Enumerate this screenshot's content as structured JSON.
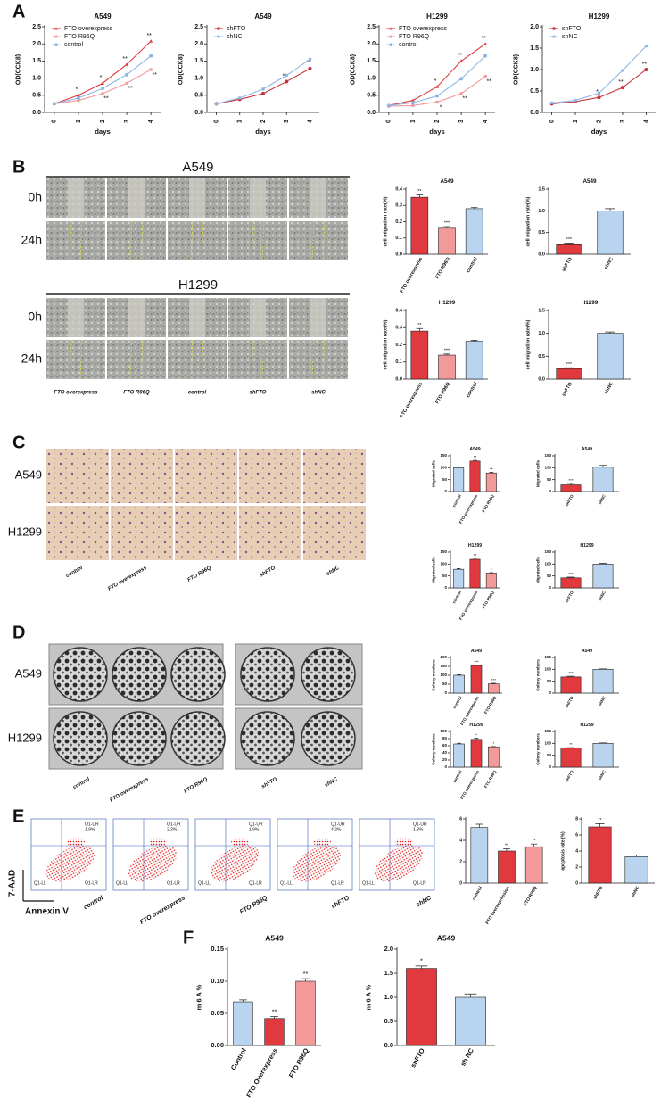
{
  "figure": {
    "panel_labels": [
      "A",
      "B",
      "C",
      "D",
      "E",
      "F"
    ],
    "B": {
      "cell_lines": [
        "A549",
        "H1299"
      ],
      "times": [
        "0h",
        "24h"
      ],
      "columns": [
        "FTO  overexpress",
        "FTO  R96Q",
        "control",
        "shFTO",
        "shNC"
      ]
    },
    "C": {
      "rows": [
        "A549",
        "H1299"
      ],
      "columns": [
        "control",
        "FTO  overexpress",
        "FTO  R96Q",
        "shFTO",
        "shNC"
      ]
    },
    "D": {
      "rows": [
        "A549",
        "H1299"
      ],
      "columns": [
        "control",
        "FTO  overexpress",
        "FTO  R96Q",
        "shFTO",
        "shNC"
      ]
    },
    "E": {
      "columns": [
        "control",
        "FTO  overexpress",
        "FTO  R96Q",
        "shFTO",
        "shNC"
      ],
      "quadrants": [
        "Q1-UR",
        "Q1-LL",
        "Q1-LR"
      ],
      "ur_percents": [
        "1.9%",
        "2.2%",
        "1.9%",
        "4.2%",
        "1.8%"
      ],
      "y_label": "7-AAD",
      "x_label": "Annexin V"
    }
  },
  "chart_data": [
    {
      "type": "line",
      "title": "A549",
      "xlabel": "days",
      "ylabel": "OD(CCK8)",
      "x": [
        0,
        1,
        2,
        3,
        4
      ],
      "xlim": [
        -0.4,
        4.4
      ],
      "xticks": [
        0,
        1,
        2,
        3,
        4
      ],
      "ylim": [
        0,
        2.5
      ],
      "yticks": [
        {
          "value": 0,
          "label": "0.0"
        },
        0.5,
        {
          "value": 1,
          "label": "1.0"
        },
        1.5,
        {
          "value": 2,
          "label": "2.0"
        },
        2.5
      ],
      "series": [
        {
          "name": "FTO overexpress",
          "color": "#e0393e",
          "marker": "triangle",
          "values": [
            0.25,
            0.5,
            0.85,
            1.4,
            2.08
          ],
          "significance": [
            null,
            "*",
            "*",
            "**",
            "**"
          ]
        },
        {
          "name": "FTO R96Q",
          "color": "#f29a9a",
          "marker": "square",
          "values": [
            0.25,
            0.35,
            0.55,
            0.85,
            1.25
          ],
          "significance": [
            null,
            null,
            "**",
            "**",
            "**"
          ]
        },
        {
          "name": "control",
          "color": "#8db7e2",
          "marker": "circle",
          "values": [
            0.25,
            0.42,
            0.7,
            1.1,
            1.65
          ]
        }
      ]
    },
    {
      "type": "line",
      "title": "A549",
      "xlabel": "days",
      "ylabel": "OD(CCK8)",
      "x": [
        0,
        1,
        2,
        3,
        4
      ],
      "xlim": [
        -0.4,
        4.4
      ],
      "xticks": [
        0,
        1,
        2,
        3,
        4
      ],
      "ylim": [
        0,
        2.5
      ],
      "yticks": [
        {
          "value": 0,
          "label": "0.0"
        },
        0.5,
        {
          "value": 1,
          "label": "1.0"
        },
        1.5,
        {
          "value": 2,
          "label": "2.0"
        },
        2.5
      ],
      "series": [
        {
          "name": "shFTO",
          "color": "#c8323a",
          "marker": "circle",
          "values": [
            0.25,
            0.38,
            0.55,
            0.9,
            1.28
          ],
          "significance": [
            null,
            null,
            null,
            "**",
            "**"
          ]
        },
        {
          "name": "shNC",
          "color": "#8db7e2",
          "marker": "square",
          "values": [
            0.25,
            0.42,
            0.68,
            1.08,
            1.55
          ]
        }
      ]
    },
    {
      "type": "line",
      "title": "H1299",
      "xlabel": "days",
      "ylabel": "OD(CCK8)",
      "x": [
        0,
        1,
        2,
        3,
        4
      ],
      "xlim": [
        -0.4,
        4.4
      ],
      "xticks": [
        0,
        1,
        2,
        3,
        4
      ],
      "ylim": [
        0,
        2.5
      ],
      "yticks": [
        {
          "value": 0,
          "label": "0.0"
        },
        0.5,
        {
          "value": 1,
          "label": "1.0"
        },
        1.5,
        {
          "value": 2,
          "label": "2.0"
        },
        2.5
      ],
      "series": [
        {
          "name": "FTO overexpress",
          "color": "#e0393e",
          "marker": "triangle",
          "values": [
            0.2,
            0.35,
            0.75,
            1.5,
            2.0
          ],
          "significance": [
            null,
            null,
            "*",
            "**",
            "**"
          ]
        },
        {
          "name": "FTO R96Q",
          "color": "#f29a9a",
          "marker": "square",
          "values": [
            0.18,
            0.2,
            0.3,
            0.55,
            1.05
          ],
          "significance": [
            null,
            null,
            "*",
            "**",
            "**"
          ]
        },
        {
          "name": "control",
          "color": "#8db7e2",
          "marker": "circle",
          "values": [
            0.2,
            0.28,
            0.48,
            0.98,
            1.65
          ]
        }
      ]
    },
    {
      "type": "line",
      "title": "H1299",
      "xlabel": "days",
      "ylabel": "OD(CCK8)",
      "x": [
        0,
        1,
        2,
        3,
        4
      ],
      "xlim": [
        -0.4,
        4.4
      ],
      "xticks": [
        0,
        1,
        2,
        3,
        4
      ],
      "ylim": [
        0,
        2.0
      ],
      "yticks": [
        {
          "value": 0,
          "label": "0.0"
        },
        0.5,
        {
          "value": 1,
          "label": "1.0"
        },
        1.5,
        {
          "value": 2,
          "label": "2.0"
        }
      ],
      "series": [
        {
          "name": "shFTO",
          "color": "#c8323a",
          "marker": "circle",
          "values": [
            0.2,
            0.25,
            0.35,
            0.58,
            1.0
          ],
          "significance": [
            null,
            null,
            "*",
            "**",
            "**"
          ]
        },
        {
          "name": "shNC",
          "color": "#8db7e2",
          "marker": "square",
          "values": [
            0.22,
            0.28,
            0.45,
            0.98,
            1.55
          ]
        }
      ]
    },
    {
      "type": "bar",
      "title": "A549",
      "ylabel": "cell migration rate(%)",
      "categories": [
        "FTO overexpress",
        "FTO R96Q",
        "control"
      ],
      "values": [
        0.35,
        0.16,
        0.28
      ],
      "errors": [
        0.015,
        0.01,
        0.008
      ],
      "colors": [
        "#e0393e",
        "#f29a9a",
        "#b8d4ee"
      ],
      "significance": [
        "**",
        "***",
        null
      ],
      "ylim": [
        0,
        0.4
      ],
      "yticks": [
        {
          "value": 0,
          "label": "0.0"
        },
        0.1,
        0.2,
        0.3,
        0.4
      ]
    },
    {
      "type": "bar",
      "title": "A549",
      "ylabel": "cell migration rate(%)",
      "categories": [
        "shFTO",
        "shNC"
      ],
      "values": [
        0.22,
        1.0
      ],
      "errors": [
        0.04,
        0.05
      ],
      "colors": [
        "#e0393e",
        "#b8d4ee"
      ],
      "significance": [
        "***",
        null
      ],
      "ylim": [
        0,
        1.5
      ],
      "yticks": [
        {
          "value": 0,
          "label": "0.0"
        },
        0.5,
        {
          "value": 1,
          "label": "1.0"
        },
        1.5
      ]
    },
    {
      "type": "bar",
      "title": "H1299",
      "ylabel": "cell migration rate(%)",
      "categories": [
        "FTO overexpress",
        "FTO R96Q",
        "control"
      ],
      "values": [
        0.28,
        0.14,
        0.22
      ],
      "errors": [
        0.015,
        0.006,
        0.006
      ],
      "colors": [
        "#e0393e",
        "#f29a9a",
        "#b8d4ee"
      ],
      "significance": [
        "**",
        "***",
        null
      ],
      "ylim": [
        0,
        0.4
      ],
      "yticks": [
        {
          "value": 0,
          "label": "0.0"
        },
        0.1,
        0.2,
        0.3,
        0.4
      ]
    },
    {
      "type": "bar",
      "title": "H1299",
      "ylabel": "cell migration rate(%)",
      "categories": [
        "shFTO",
        "shNC"
      ],
      "values": [
        0.23,
        1.0
      ],
      "errors": [
        0.02,
        0.03
      ],
      "colors": [
        "#e0393e",
        "#b8d4ee"
      ],
      "significance": [
        "***",
        null
      ],
      "ylim": [
        0,
        1.5
      ],
      "yticks": [
        {
          "value": 0,
          "label": "0.0"
        },
        0.5,
        {
          "value": 1,
          "label": "1.0"
        },
        1.5
      ]
    },
    {
      "type": "bar",
      "title": "A549",
      "ylabel": "Migrated cells",
      "categories": [
        "control",
        "FTO overexpress",
        "FTO R96Q"
      ],
      "values": [
        100,
        128,
        78
      ],
      "errors": [
        2,
        3,
        3
      ],
      "colors": [
        "#b8d4ee",
        "#e0393e",
        "#f29a9a"
      ],
      "significance": [
        null,
        "**",
        "**"
      ],
      "ylim": [
        0,
        150
      ],
      "yticks": [
        0,
        50,
        100,
        150
      ]
    },
    {
      "type": "bar",
      "title": "A549",
      "ylabel": "Migrated cells",
      "categories": [
        "shFTO",
        "shNC"
      ],
      "values": [
        28,
        102
      ],
      "errors": [
        6,
        8
      ],
      "colors": [
        "#e0393e",
        "#b8d4ee"
      ],
      "significance": [
        "***",
        null
      ],
      "ylim": [
        0,
        150
      ],
      "yticks": [
        0,
        50,
        100,
        150
      ]
    },
    {
      "type": "bar",
      "title": "H1299",
      "ylabel": "Migrated cells",
      "categories": [
        "control",
        "FTO overexpress",
        "FTO R96Q"
      ],
      "values": [
        78,
        120,
        62
      ],
      "errors": [
        3,
        4,
        2
      ],
      "colors": [
        "#b8d4ee",
        "#e0393e",
        "#f29a9a"
      ],
      "significance": [
        null,
        "**",
        "*"
      ],
      "ylim": [
        0,
        150
      ],
      "yticks": [
        0,
        50,
        100,
        150
      ]
    },
    {
      "type": "bar",
      "title": "H1299",
      "ylabel": "Migrated cells",
      "categories": [
        "shFTO",
        "shNC"
      ],
      "values": [
        42,
        100
      ],
      "errors": [
        3,
        3
      ],
      "colors": [
        "#e0393e",
        "#b8d4ee"
      ],
      "significance": [
        "***",
        null
      ],
      "ylim": [
        0,
        150
      ],
      "yticks": [
        0,
        50,
        100,
        150
      ]
    },
    {
      "type": "bar",
      "title": "A549",
      "ylabel": "Colony numbers",
      "categories": [
        "control",
        "FTO overexpress",
        "FTO R96Q"
      ],
      "values": [
        100,
        155,
        52
      ],
      "errors": [
        3,
        3,
        3
      ],
      "colors": [
        "#b8d4ee",
        "#e0393e",
        "#f29a9a"
      ],
      "significance": [
        null,
        "***",
        "***"
      ],
      "ylim": [
        0,
        200
      ],
      "yticks": [
        0,
        50,
        100,
        150,
        200
      ]
    },
    {
      "type": "bar",
      "title": "A549",
      "ylabel": "Colony numbers",
      "categories": [
        "shFTO",
        "shNC"
      ],
      "values": [
        68,
        100
      ],
      "errors": [
        3,
        2
      ],
      "colors": [
        "#e0393e",
        "#b8d4ee"
      ],
      "significance": [
        "***",
        null
      ],
      "ylim": [
        0,
        150
      ],
      "yticks": [
        0,
        50,
        100,
        150
      ]
    },
    {
      "type": "bar",
      "title": "H1299",
      "ylabel": "Colony numbers",
      "categories": [
        "control",
        "FTO overexpress",
        "FTO R96Q"
      ],
      "values": [
        65,
        78,
        57
      ],
      "errors": [
        2,
        3,
        1
      ],
      "colors": [
        "#b8d4ee",
        "#e0393e",
        "#f29a9a"
      ],
      "significance": [
        null,
        "*",
        "*"
      ],
      "ylim": [
        0,
        100
      ],
      "yticks": [
        0,
        20,
        40,
        60,
        80,
        100
      ]
    },
    {
      "type": "bar",
      "title": "H1299",
      "ylabel": "Colony numbers",
      "categories": [
        "shFTO",
        "shNC"
      ],
      "values": [
        80,
        100
      ],
      "errors": [
        2,
        2
      ],
      "colors": [
        "#e0393e",
        "#b8d4ee"
      ],
      "significance": [
        "**",
        null
      ],
      "ylim": [
        0,
        150
      ],
      "yticks": [
        0,
        50,
        100,
        150
      ]
    },
    {
      "type": "bar",
      "categories": [
        "control",
        "FTO overexpression",
        "FTO R96Q"
      ],
      "values": [
        5.2,
        3.0,
        3.4
      ],
      "errors": [
        0.3,
        0.2,
        0.25
      ],
      "colors": [
        "#b8d4ee",
        "#e0393e",
        "#f29a9a"
      ],
      "significance": [
        null,
        "**",
        "**"
      ],
      "ylim": [
        0,
        6
      ],
      "yticks": [
        0,
        2,
        4,
        6
      ]
    },
    {
      "type": "bar",
      "ylabel": "apoptosis rate (%)",
      "categories": [
        "shFTO",
        "shNC"
      ],
      "values": [
        7.0,
        3.3
      ],
      "errors": [
        0.4,
        0.2
      ],
      "colors": [
        "#e0393e",
        "#b8d4ee"
      ],
      "significance": [
        "**",
        null
      ],
      "ylim": [
        0,
        8
      ],
      "yticks": [
        0,
        2,
        4,
        6,
        8
      ]
    },
    {
      "type": "bar",
      "title": "A549",
      "ylabel": "m 6 A %",
      "categories": [
        "Control",
        "FTO Overexpress",
        "FTO R96Q"
      ],
      "values": [
        0.068,
        0.042,
        0.1
      ],
      "errors": [
        0.003,
        0.003,
        0.004
      ],
      "colors": [
        "#b8d4ee",
        "#e0393e",
        "#f29a9a"
      ],
      "significance": [
        null,
        "**",
        "**"
      ],
      "ylim": [
        0,
        0.15
      ],
      "yticks": [
        {
          "value": 0,
          "label": "0.00"
        },
        0.05,
        {
          "value": 0.1,
          "label": "0.10"
        },
        0.15
      ]
    },
    {
      "type": "bar",
      "title": "A549",
      "ylabel": "m 6 A %",
      "categories": [
        "shFTO",
        "sh NC"
      ],
      "values": [
        1.6,
        1.0
      ],
      "errors": [
        0.05,
        0.07
      ],
      "colors": [
        "#e0393e",
        "#b8d4ee"
      ],
      "significance": [
        "*",
        null
      ],
      "ylim": [
        0,
        2.0
      ],
      "yticks": [
        {
          "value": 0,
          "label": "0.0"
        },
        0.5,
        {
          "value": 1,
          "label": "1.0"
        },
        1.5,
        {
          "value": 2,
          "label": "2.0"
        }
      ]
    }
  ]
}
